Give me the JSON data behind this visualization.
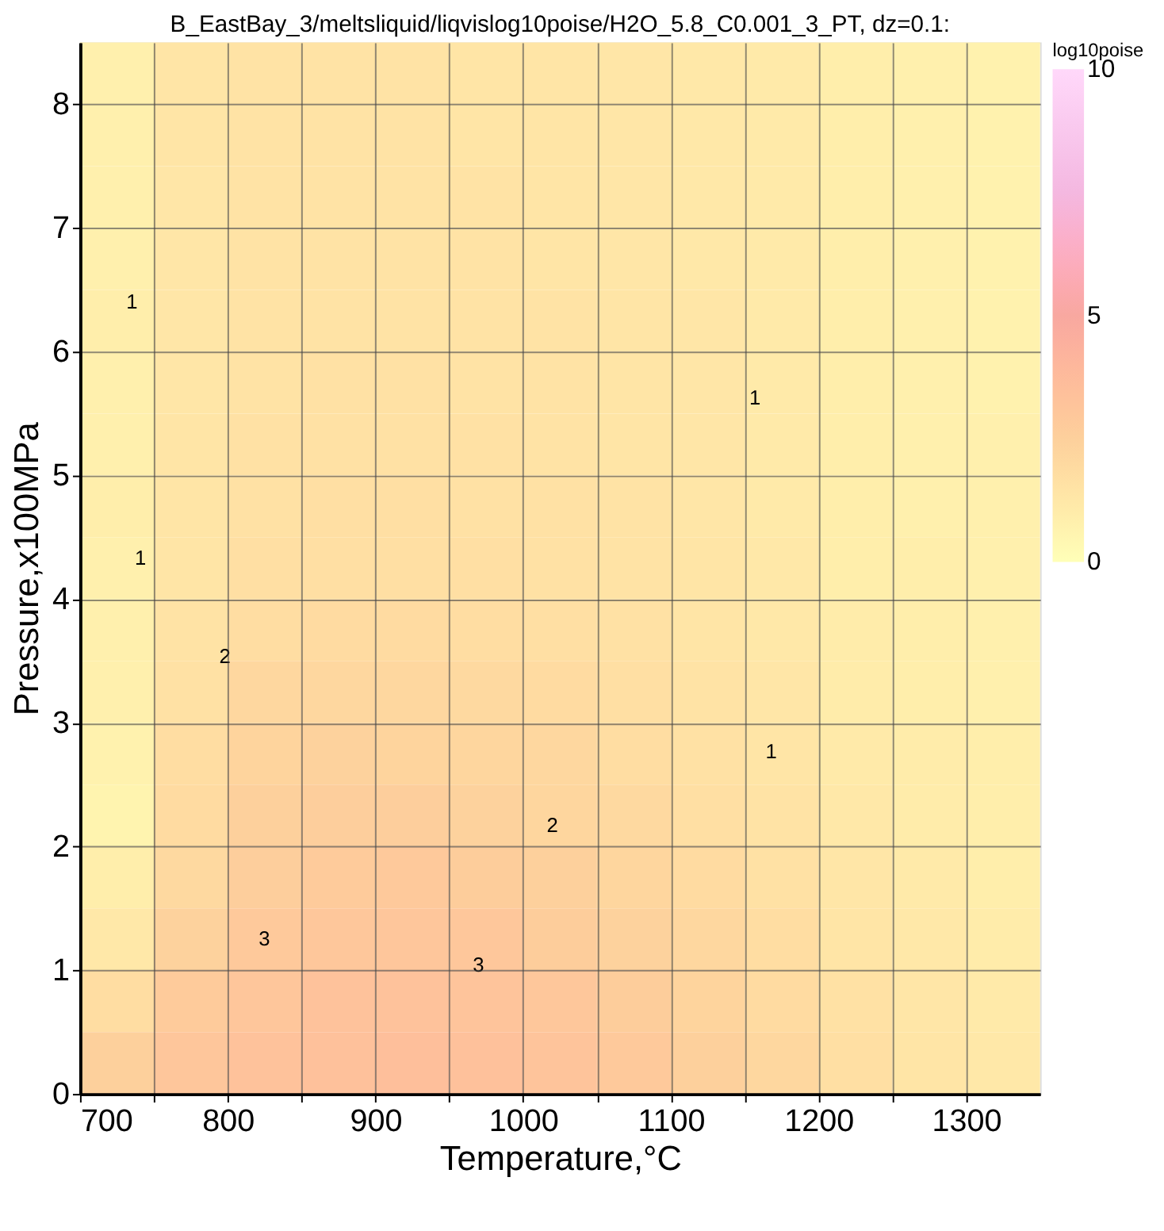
{
  "chart_data": {
    "type": "heatmap",
    "title": "B_EastBay_3/meltsliquid/liqvislog10poise/H2O_5.8_C0.001_3_PT, dz=0.1:",
    "xlabel": "Temperature,°C",
    "ylabel": "Pressure,x100MPa",
    "clabel": "log10poise",
    "x": [
      725,
      775,
      825,
      875,
      925,
      975,
      1025,
      1075,
      1125,
      1175,
      1225,
      1275,
      1325
    ],
    "y": [
      8.25,
      7.75,
      7.25,
      6.75,
      6.25,
      5.75,
      5.25,
      4.75,
      4.25,
      3.75,
      3.25,
      2.75,
      2.25,
      1.75,
      1.25,
      0.75,
      0.25
    ],
    "cells": [
      [
        0.8,
        1.4,
        1.5,
        1.5,
        1.5,
        1.4,
        1.4,
        1.3,
        1.2,
        1.1,
        0.9,
        0.8,
        0.7
      ],
      [
        0.8,
        1.4,
        1.5,
        1.5,
        1.5,
        1.4,
        1.4,
        1.3,
        1.2,
        1.1,
        0.9,
        0.8,
        0.7
      ],
      [
        0.8,
        1.3,
        1.5,
        1.5,
        1.5,
        1.5,
        1.4,
        1.3,
        1.2,
        1.1,
        0.9,
        0.8,
        0.7
      ],
      [
        0.8,
        1.3,
        1.5,
        1.5,
        1.5,
        1.5,
        1.4,
        1.3,
        1.2,
        1.1,
        0.9,
        0.8,
        0.7
      ],
      [
        0.9,
        1.3,
        1.5,
        1.5,
        1.5,
        1.5,
        1.5,
        1.4,
        1.3,
        1.1,
        0.9,
        0.8,
        0.7
      ],
      [
        0.8,
        1.3,
        1.5,
        1.6,
        1.6,
        1.5,
        1.5,
        1.4,
        1.3,
        1.1,
        0.9,
        0.8,
        0.7
      ],
      [
        0.8,
        1.4,
        1.6,
        1.6,
        1.6,
        1.6,
        1.5,
        1.4,
        1.3,
        1.1,
        0.9,
        0.8,
        0.8
      ],
      [
        0.9,
        1.4,
        1.6,
        1.7,
        1.7,
        1.6,
        1.6,
        1.5,
        1.3,
        1.1,
        0.9,
        0.8,
        0.8
      ],
      [
        0.8,
        1.4,
        1.7,
        1.7,
        1.7,
        1.7,
        1.6,
        1.5,
        1.4,
        1.2,
        0.9,
        0.9,
        0.8
      ],
      [
        0.8,
        1.5,
        1.8,
        1.9,
        1.9,
        1.8,
        1.7,
        1.6,
        1.4,
        1.2,
        1.0,
        0.9,
        0.8
      ],
      [
        0.8,
        1.6,
        2.1,
        2.1,
        2.1,
        2.0,
        1.9,
        1.7,
        1.5,
        1.3,
        1.0,
        0.9,
        0.8
      ],
      [
        0.7,
        1.8,
        2.3,
        2.4,
        2.3,
        2.2,
        2.1,
        1.8,
        1.6,
        1.4,
        1.1,
        1.0,
        0.9
      ],
      [
        0.6,
        1.9,
        2.5,
        2.6,
        2.6,
        2.4,
        2.2,
        2.0,
        1.7,
        1.5,
        1.2,
        1.0,
        0.9
      ],
      [
        0.9,
        2.0,
        2.6,
        2.8,
        2.9,
        2.7,
        2.5,
        2.2,
        1.9,
        1.6,
        1.3,
        1.1,
        0.9
      ],
      [
        1.2,
        2.4,
        2.9,
        3.0,
        3.1,
        3.0,
        2.7,
        2.4,
        2.1,
        1.8,
        1.4,
        1.2,
        1.0
      ],
      [
        1.8,
        2.8,
        3.1,
        3.3,
        3.3,
        3.2,
        3.0,
        2.7,
        2.3,
        1.9,
        1.6,
        1.3,
        1.1
      ],
      [
        2.5,
        3.1,
        3.3,
        3.4,
        3.5,
        3.4,
        3.2,
        2.9,
        2.5,
        2.1,
        1.7,
        1.4,
        1.2
      ]
    ],
    "clim": [
      0,
      10
    ],
    "cticks": [
      0,
      5,
      10
    ],
    "xlim": [
      700,
      1350
    ],
    "ylim": [
      0,
      8.5
    ],
    "xticks": [
      700,
      {
        "value": 750,
        "label": null
      },
      800,
      {
        "value": 850,
        "label": null
      },
      900,
      {
        "value": 950,
        "label": null
      },
      1000,
      {
        "value": 1050,
        "label": null
      },
      1100,
      {
        "value": 1150,
        "label": null
      },
      1200,
      {
        "value": 1250,
        "label": null
      },
      1300
    ],
    "yticks": [
      0,
      1,
      2,
      3,
      4,
      5,
      6,
      7,
      8
    ],
    "grid": true,
    "annotations": [
      "1",
      "1",
      "2",
      "2",
      "3",
      "3",
      "1",
      "1"
    ]
  }
}
